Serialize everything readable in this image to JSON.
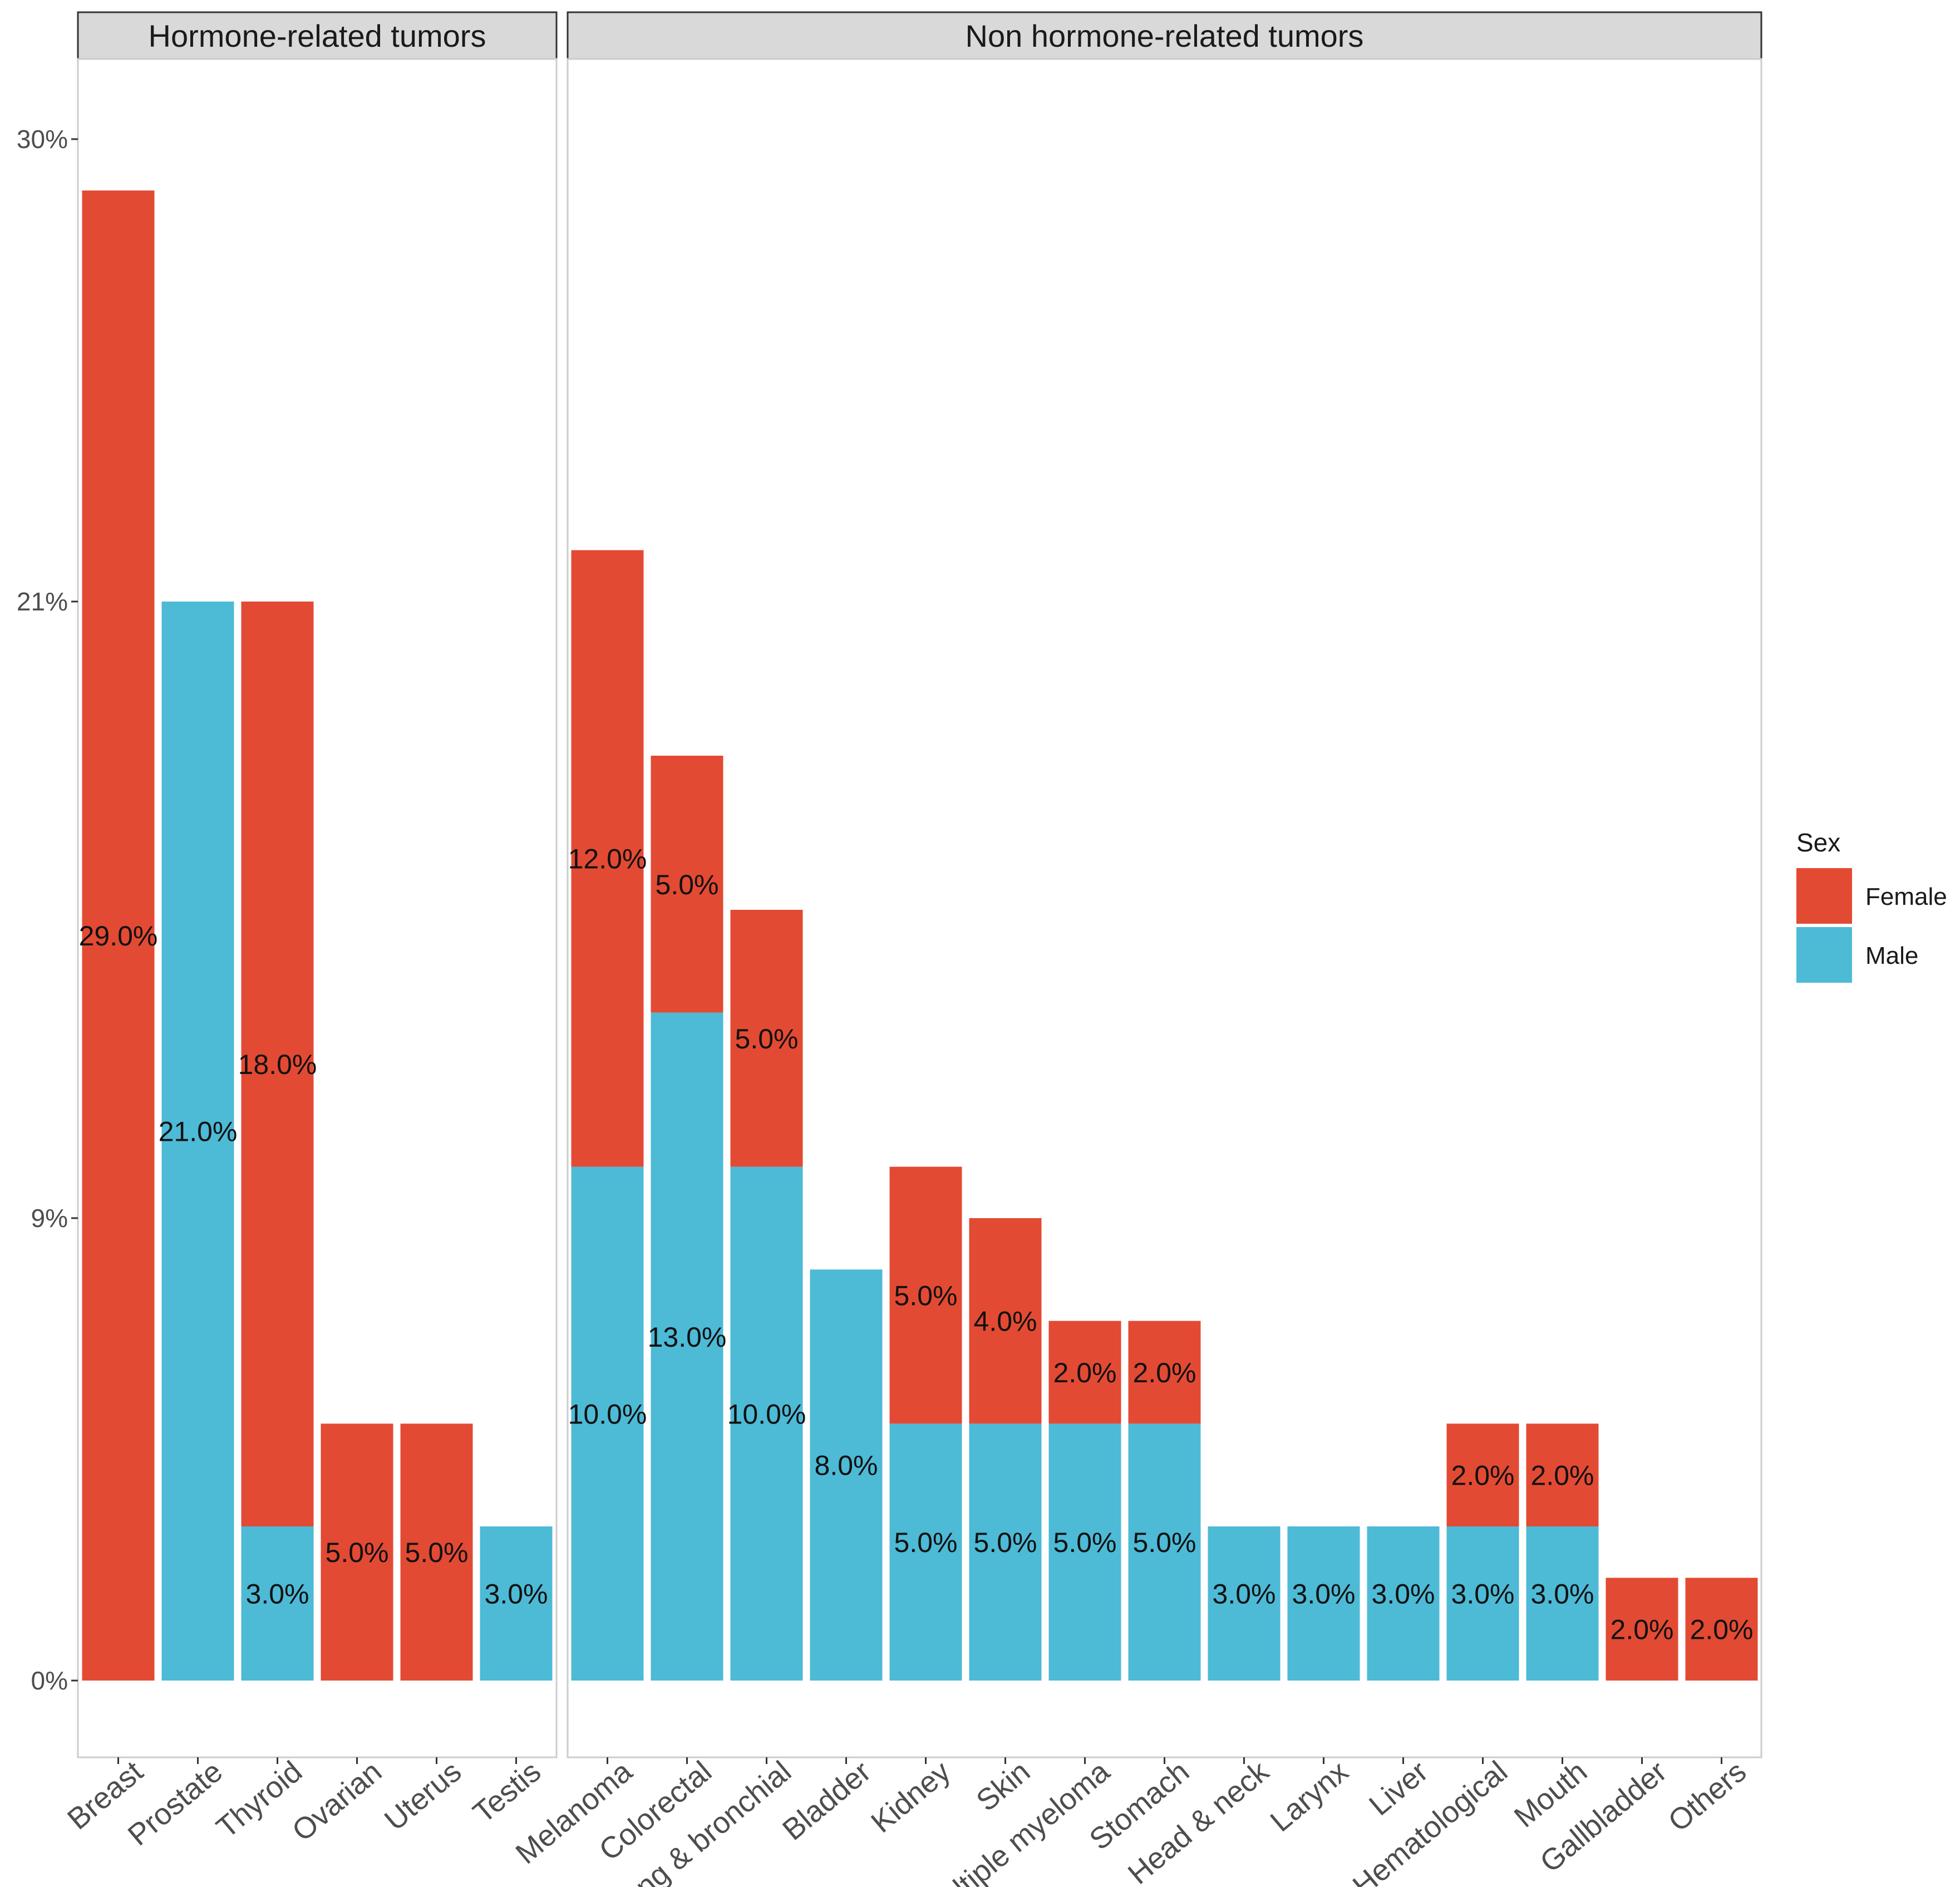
{
  "chart_data": {
    "type": "bar",
    "stacked": true,
    "ylim": [
      0,
      30
    ],
    "y_ticks": [
      {
        "value": 0,
        "label": "0%"
      },
      {
        "value": 9,
        "label": "9%"
      },
      {
        "value": 21,
        "label": "21%"
      },
      {
        "value": 30,
        "label": "30%"
      }
    ],
    "legend": {
      "title": "Sex",
      "position": "right",
      "entries": [
        {
          "name": "Female",
          "color": "#E34A33"
        },
        {
          "name": "Male",
          "color": "#4DBAD6"
        }
      ]
    },
    "panels": [
      {
        "title": "Hormone-related tumors",
        "categories": [
          "Breast",
          "Prostate",
          "Thyroid",
          "Ovarian",
          "Uterus",
          "Testis"
        ],
        "series": [
          {
            "name": "Male",
            "values": [
              0,
              21,
              3,
              0,
              0,
              3
            ],
            "labels": [
              "",
              "21.0%",
              "3.0%",
              "",
              "",
              "3.0%"
            ]
          },
          {
            "name": "Female",
            "values": [
              29,
              0,
              18,
              5,
              5,
              0
            ],
            "labels": [
              "29.0%",
              "",
              "18.0%",
              "5.0%",
              "5.0%",
              ""
            ]
          }
        ]
      },
      {
        "title": "Non hormone-related tumors",
        "categories": [
          "Melanoma",
          "Colorectal",
          "Lung & bronchial",
          "Bladder",
          "Kidney",
          "Skin",
          "Multiple myeloma",
          "Stomach",
          "Head & neck",
          "Larynx",
          "Liver",
          "Hematological",
          "Mouth",
          "Gallbladder",
          "Others"
        ],
        "series": [
          {
            "name": "Male",
            "values": [
              10,
              13,
              10,
              8,
              5,
              5,
              5,
              5,
              3,
              3,
              3,
              3,
              3,
              0,
              0
            ],
            "labels": [
              "10.0%",
              "13.0%",
              "10.0%",
              "8.0%",
              "5.0%",
              "5.0%",
              "5.0%",
              "5.0%",
              "3.0%",
              "3.0%",
              "3.0%",
              "3.0%",
              "3.0%",
              "",
              ""
            ]
          },
          {
            "name": "Female",
            "values": [
              12,
              5,
              5,
              0,
              5,
              4,
              2,
              2,
              0,
              0,
              0,
              2,
              2,
              2,
              2
            ],
            "labels": [
              "12.0%",
              "5.0%",
              "5.0%",
              "",
              "5.0%",
              "4.0%",
              "2.0%",
              "2.0%",
              "",
              "",
              "",
              "2.0%",
              "2.0%",
              "2.0%",
              "2.0%"
            ]
          }
        ]
      }
    ]
  }
}
